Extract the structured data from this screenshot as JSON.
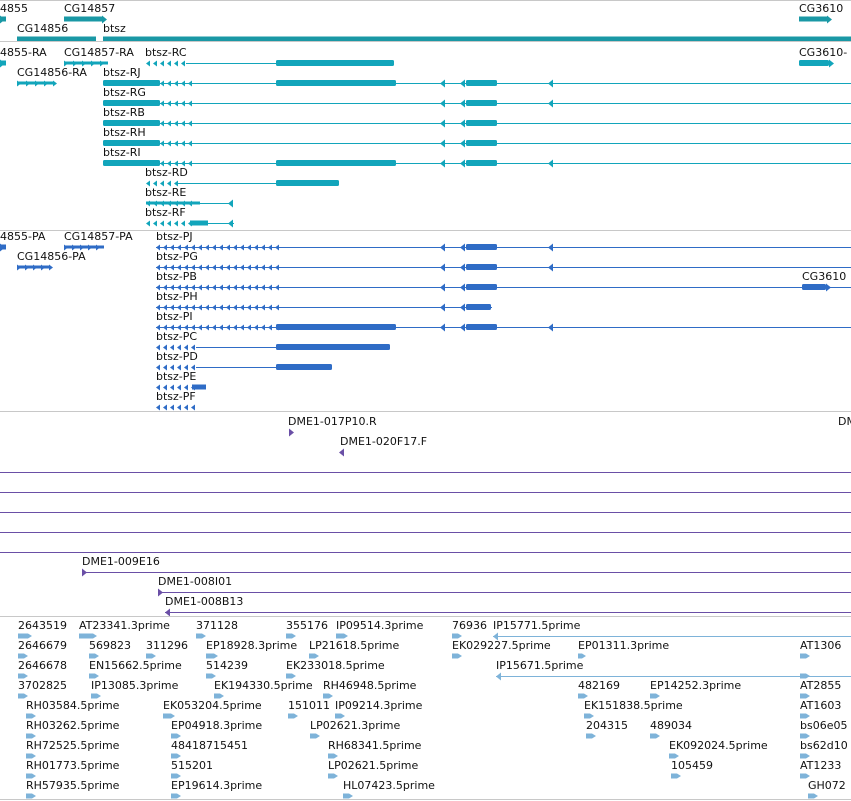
{
  "colors": {
    "gene": "#1a98a5",
    "mrna": "#12a5bb",
    "protein": "#2f6cc6",
    "clone": "#6a4fa6",
    "est": "#7eb3d9",
    "separator": "#c8c8c8"
  },
  "genes_track": {
    "labels": [
      "4855",
      "CG14857",
      "CG14856",
      "btsz",
      "CG3610"
    ]
  },
  "transcripts_track": {
    "labels": [
      "4855-RA",
      "CG14857-RA",
      "btsz-RC",
      "CG14856-RA",
      "btsz-RJ",
      "btsz-RG",
      "btsz-RB",
      "btsz-RH",
      "btsz-RI",
      "btsz-RD",
      "btsz-RE",
      "btsz-RF",
      "CG3610-"
    ]
  },
  "proteins_track": {
    "labels": [
      "4855-PA",
      "CG14857-PA",
      "btsz-PJ",
      "CG14856-PA",
      "btsz-PG",
      "btsz-PB",
      "CG3610",
      "btsz-PH",
      "btsz-PI",
      "btsz-PC",
      "btsz-PD",
      "btsz-PE",
      "btsz-PF"
    ]
  },
  "clones_track": {
    "labels": [
      "DME1-017P10.R",
      "DM",
      "DME1-020F17.F",
      "DME1-009E16",
      "DME1-008I01",
      "DME1-008B13"
    ]
  },
  "ests_track": {
    "labels": [
      "2643519",
      "AT23341.3prime",
      "371128",
      "355176",
      "IP09514.3prime",
      "76936",
      "IP15771.5prime",
      "2646679",
      "569823",
      "311296",
      "EP18928.3prime",
      "LP21618.5prime",
      "EK029227.5prime",
      "EP01311.3prime",
      "AT1306",
      "2646678",
      "EN15662.5prime",
      "514239",
      "EK233018.5prime",
      "IP15671.5prime",
      "3702825",
      "IP13085.3prime",
      "EK194330.5prime",
      "RH46948.5prime",
      "482169",
      "EP14252.3prime",
      "AT2855",
      "RH03584.5prime",
      "EK053204.5prime",
      "151011",
      "IP09214.3prime",
      "EK151838.5prime",
      "AT1603",
      "RH03262.5prime",
      "EP04918.3prime",
      "LP02621.3prime",
      "204315",
      "489034",
      "bs06e05",
      "RH72525.5prime",
      "48418715451",
      "RH68341.5prime",
      "EK092024.5prime",
      "bs62d10",
      "RH01773.5prime",
      "515201",
      "LP02621.5prime",
      "105459",
      "AT1233",
      "RH57935.5prime",
      "EP19614.3prime",
      "HL07423.5prime",
      "GH072"
    ]
  }
}
